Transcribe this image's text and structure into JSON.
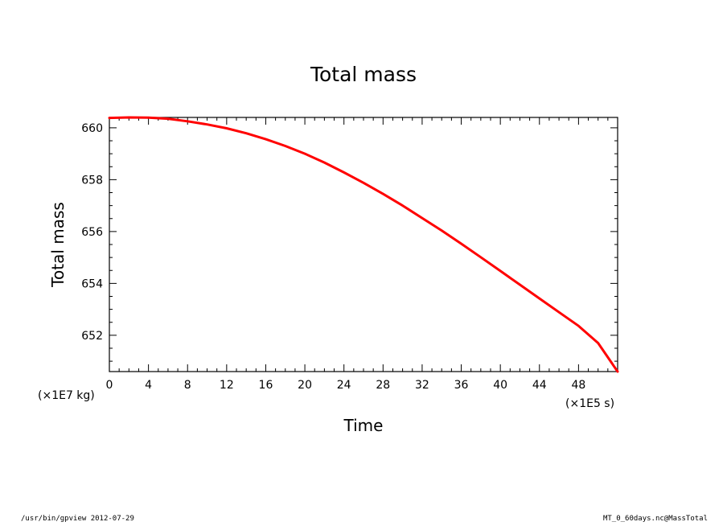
{
  "chart_data": {
    "type": "line",
    "title": "Total mass",
    "xlabel": "Time",
    "ylabel": "Total mass",
    "x_unit": "(×1E5 s)",
    "y_unit": "(×1E7 kg)",
    "xlim": [
      0,
      52
    ],
    "ylim": [
      650.6,
      660.4
    ],
    "x_ticks": [
      0,
      4,
      8,
      12,
      16,
      20,
      24,
      28,
      32,
      36,
      40,
      44,
      48
    ],
    "y_ticks": [
      652,
      654,
      656,
      658,
      660
    ],
    "grid": false,
    "series": [
      {
        "color": "#ff0000",
        "x": [
          0,
          2,
          4,
          6,
          8,
          10,
          12,
          14,
          16,
          18,
          20,
          22,
          24,
          26,
          28,
          30,
          32,
          34,
          36,
          38,
          40,
          42,
          44,
          46,
          48,
          50,
          52
        ],
        "y": [
          660.38,
          660.4,
          660.39,
          660.35,
          660.25,
          660.13,
          659.98,
          659.79,
          659.56,
          659.3,
          659.0,
          658.66,
          658.28,
          657.88,
          657.45,
          657.0,
          656.52,
          656.04,
          655.53,
          655.01,
          654.48,
          653.95,
          653.42,
          652.89,
          652.36,
          651.7,
          650.6
        ]
      }
    ]
  },
  "footer": {
    "left": "/usr/bin/gpview   2012-07-29",
    "right": "MT_0_60days.nc@MassTotal"
  }
}
